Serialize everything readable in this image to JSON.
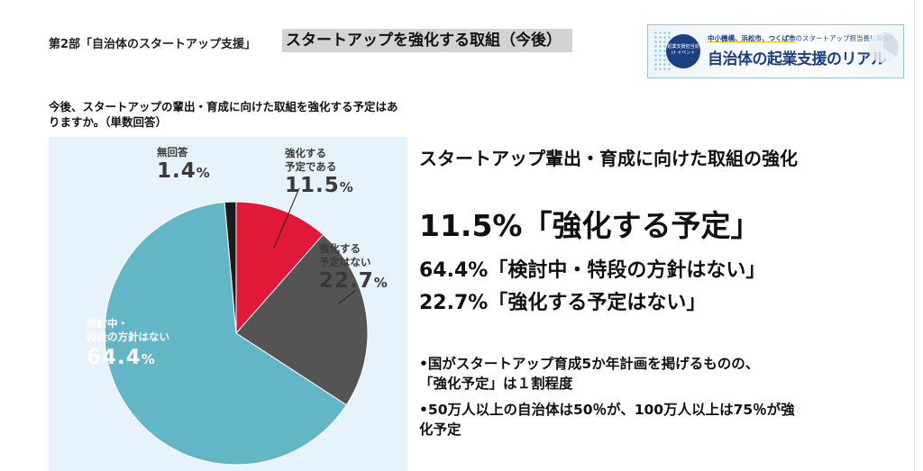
{
  "header": {
    "section": "第2部「自治体のスタートアップ支援」",
    "title": "スタートアップを強化する取組（今後）"
  },
  "banner": {
    "badge": "起業支援担当向け イベント",
    "top_highlight": "中小機構、浜松市、つくば市",
    "top_rest": "のスタートアップ担当長に聞く!",
    "main": "自治体の起業支援のリアル"
  },
  "question": "今後、スタートアップの輩出・育成に向けた取組を強化する予定はありますか。（単数回答）",
  "chart_data": {
    "type": "pie",
    "slices": [
      {
        "label_lines": [
          "強化する",
          "予定である"
        ],
        "value": 11.5,
        "color": "#e21838"
      },
      {
        "label_lines": [
          "強化する",
          "予定はない"
        ],
        "value": 22.7,
        "color": "#555454"
      },
      {
        "label_lines": [
          "検討中・",
          "特段の方針はない"
        ],
        "value": 64.4,
        "color": "#63b6c6"
      },
      {
        "label_lines": [
          "無回答"
        ],
        "value": 1.4,
        "color": "#1c1c1c"
      }
    ],
    "value_strings": [
      "11.5",
      "22.7",
      "64.4",
      "1.4"
    ],
    "unit": "%"
  },
  "right": {
    "heading": "スタートアップ輩出・育成に向けた取組の強化",
    "result_big": "11.5%「強化する予定」",
    "result_2": "64.4%「検討中・特段の方針はない」",
    "result_3": "22.7%「強化する予定はない」",
    "bullet_1_line1": "•国がスタートアップ育成5か年計画を掲げるものの、",
    "bullet_1_line2": "「強化予定」は１割程度",
    "bullet_2_line1": "•50万人以上の自治体は50％が、100万人以上は75％が強",
    "bullet_2_line2": "化予定"
  }
}
